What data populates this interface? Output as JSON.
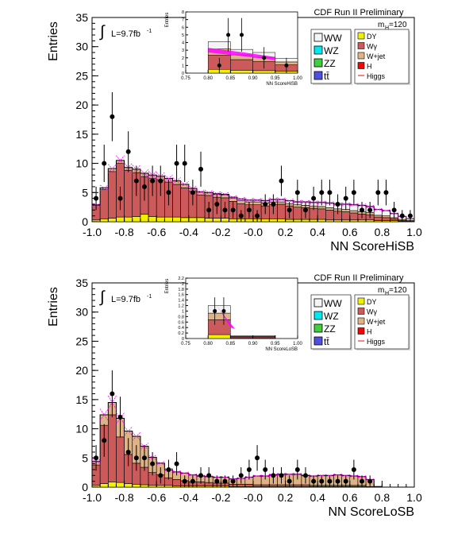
{
  "colors": {
    "WW": "#f4f4f4",
    "WZ": "#00e8f0",
    "ZZ": "#3fcf3f",
    "ttbar": "#5050e0",
    "DY": "#f0f000",
    "Wgamma": "#cd5a5a",
    "Wjet": "#deb487",
    "H": "#ff0000",
    "Higgs": "#ff00ff",
    "data": "#000000"
  },
  "panels": [
    {
      "id": "hisb",
      "header": "CDF Run II Preliminary",
      "mass_label": "m",
      "mass_sub": "H",
      "mass_value": "=120",
      "lumi_prefix": "L=9.7fb",
      "lumi_sup": "-1",
      "integral_symbol": "∫",
      "ylabel": "Entries",
      "xlabel": "NN ScoreHiSB",
      "legend_left": [
        "WW",
        "WZ",
        "ZZ",
        "tt̄"
      ],
      "legend_right": [
        "DY",
        "Wγ",
        "W+jet",
        "H",
        "Higgs"
      ],
      "inset": {
        "ylabel": "Entries",
        "xlabel": "NN ScoreHiSB",
        "xticks": [
          "0.75",
          "0.80",
          "0.85",
          "0.90",
          "0.95",
          "1.00"
        ],
        "yticks": [
          "0",
          "1",
          "2",
          "3",
          "4",
          "5",
          "6",
          "7",
          "8"
        ]
      },
      "xticks": [
        "-1.0",
        "-0.8",
        "-0.6",
        "-0.4",
        "-0.2",
        "-0.0",
        "0.2",
        "0.4",
        "0.6",
        "0.8",
        "1.0"
      ],
      "yticks": [
        "0",
        "5",
        "10",
        "15",
        "20",
        "25",
        "30",
        "35"
      ]
    },
    {
      "id": "losb",
      "header": "CDF Run II Preliminary",
      "mass_label": "m",
      "mass_sub": "H",
      "mass_value": "=120",
      "lumi_prefix": "L=9.7fb",
      "lumi_sup": "-1",
      "integral_symbol": "∫",
      "ylabel": "Entries",
      "xlabel": "NN ScoreLoSB",
      "legend_left": [
        "WW",
        "WZ",
        "ZZ",
        "tt̄"
      ],
      "legend_right": [
        "DY",
        "Wγ",
        "W+jet",
        "H",
        "Higgs"
      ],
      "inset": {
        "ylabel": "Entries",
        "xlabel": "NN ScoreLoSB",
        "xticks": [
          "0.75",
          "0.80",
          "0.85",
          "0.90",
          "0.95",
          "1.00"
        ],
        "yticks": [
          "0",
          "0.2",
          "0.4",
          "0.6",
          "0.8",
          "1",
          "1.2",
          "1.4",
          "1.6",
          "1.8",
          "2",
          "2.2"
        ]
      },
      "xticks": [
        "-1.0",
        "-0.8",
        "-0.6",
        "-0.4",
        "-0.2",
        "-0.0",
        "0.2",
        "0.4",
        "0.6",
        "0.8",
        "1.0"
      ],
      "yticks": [
        "0",
        "5",
        "10",
        "15",
        "20",
        "25",
        "30",
        "35"
      ]
    }
  ],
  "chart_data": [
    {
      "type": "bar",
      "title": "CDF Run II Preliminary",
      "xlabel": "NN ScoreHiSB",
      "ylabel": "Entries",
      "xlim": [
        -1.0,
        1.0
      ],
      "ylim": [
        0,
        35
      ],
      "bin_edges_start": -1.0,
      "bin_width": 0.05,
      "stack_order": [
        "DY",
        "Wgamma",
        "Wjet",
        "WW"
      ],
      "series": [
        {
          "name": "DY",
          "values": [
            0.3,
            0.5,
            0.6,
            0.8,
            0.8,
            0.9,
            1.3,
            0.9,
            0.8,
            0.8,
            0.8,
            0.7,
            0.7,
            0.7,
            0.6,
            0.6,
            0.6,
            0.5,
            0.5,
            0.5,
            0.5,
            0.5,
            0.5,
            0.5,
            0.4,
            0.4,
            0.4,
            0.4,
            0.4,
            0.3,
            0.3,
            0.3,
            0.3,
            0.3,
            0.3,
            0.2,
            0.2,
            0.2,
            0.1,
            0.1
          ]
        },
        {
          "name": "Wgamma",
          "values": [
            2.5,
            5.0,
            8.0,
            9.2,
            8.0,
            7.5,
            6.4,
            6.5,
            6.4,
            6.0,
            5.6,
            5.1,
            4.5,
            3.9,
            3.9,
            3.6,
            3.5,
            3.0,
            2.6,
            2.4,
            2.4,
            2.2,
            2.4,
            2.5,
            2.3,
            2.1,
            2.0,
            1.9,
            1.8,
            1.7,
            1.5,
            1.4,
            1.2,
            1.0,
            0.9,
            0.6,
            0.5,
            0.3,
            0.1,
            0.0
          ]
        },
        {
          "name": "Wjet",
          "values": [
            0.1,
            0.3,
            0.5,
            0.5,
            0.5,
            0.6,
            0.6,
            0.6,
            0.6,
            0.6,
            0.6,
            0.6,
            0.5,
            0.5,
            0.5,
            0.5,
            0.5,
            0.5,
            0.5,
            0.5,
            0.5,
            0.5,
            0.5,
            0.4,
            0.4,
            0.4,
            0.4,
            0.4,
            0.4,
            0.4,
            0.4,
            0.4,
            0.4,
            0.4,
            0.4,
            0.3,
            0.3,
            0.2,
            0.2,
            0.1
          ]
        },
        {
          "name": "WW",
          "values": [
            0.0,
            0.0,
            0.0,
            0.0,
            0.0,
            0.0,
            0.0,
            0.0,
            0.0,
            0.0,
            0.0,
            0.0,
            0.0,
            0.0,
            0.0,
            0.1,
            0.1,
            0.2,
            0.3,
            0.3,
            0.3,
            0.4,
            0.4,
            0.4,
            0.5,
            0.5,
            0.6,
            0.6,
            0.7,
            0.8,
            0.8,
            0.9,
            1.0,
            1.1,
            1.0,
            1.0,
            0.9,
            0.7,
            0.5,
            0.3
          ]
        }
      ],
      "data_points": [
        {
          "x": -0.975,
          "y": 4,
          "err": 2.0
        },
        {
          "x": -0.925,
          "y": 10,
          "err": 3.2
        },
        {
          "x": -0.875,
          "y": 18,
          "err": 4.2
        },
        {
          "x": -0.825,
          "y": 4,
          "err": 2.0
        },
        {
          "x": -0.775,
          "y": 12,
          "err": 3.5
        },
        {
          "x": -0.725,
          "y": 7,
          "err": 2.6
        },
        {
          "x": -0.675,
          "y": 6,
          "err": 2.4
        },
        {
          "x": -0.625,
          "y": 7,
          "err": 2.6
        },
        {
          "x": -0.575,
          "y": 7,
          "err": 2.6
        },
        {
          "x": -0.525,
          "y": 5,
          "err": 2.2
        },
        {
          "x": -0.475,
          "y": 10,
          "err": 3.2
        },
        {
          "x": -0.425,
          "y": 10,
          "err": 3.2
        },
        {
          "x": -0.375,
          "y": 5,
          "err": 2.2
        },
        {
          "x": -0.325,
          "y": 9,
          "err": 3.0
        },
        {
          "x": -0.275,
          "y": 2,
          "err": 1.4
        },
        {
          "x": -0.225,
          "y": 3,
          "err": 1.7
        },
        {
          "x": -0.175,
          "y": 2,
          "err": 1.4
        },
        {
          "x": -0.125,
          "y": 2,
          "err": 1.4
        },
        {
          "x": -0.075,
          "y": 1,
          "err": 1.0
        },
        {
          "x": -0.025,
          "y": 2,
          "err": 1.4
        },
        {
          "x": 0.025,
          "y": 1,
          "err": 1.0
        },
        {
          "x": 0.075,
          "y": 3,
          "err": 1.7
        },
        {
          "x": 0.125,
          "y": 3,
          "err": 1.7
        },
        {
          "x": 0.175,
          "y": 7,
          "err": 2.6
        },
        {
          "x": 0.225,
          "y": 2,
          "err": 1.4
        },
        {
          "x": 0.275,
          "y": 5,
          "err": 2.2
        },
        {
          "x": 0.325,
          "y": 2,
          "err": 1.4
        },
        {
          "x": 0.375,
          "y": 4,
          "err": 2.0
        },
        {
          "x": 0.425,
          "y": 5,
          "err": 2.2
        },
        {
          "x": 0.475,
          "y": 5,
          "err": 2.2
        },
        {
          "x": 0.525,
          "y": 3,
          "err": 1.7
        },
        {
          "x": 0.575,
          "y": 4,
          "err": 2.0
        },
        {
          "x": 0.625,
          "y": 5,
          "err": 2.2
        },
        {
          "x": 0.675,
          "y": 2,
          "err": 1.4
        },
        {
          "x": 0.725,
          "y": 2,
          "err": 1.4
        },
        {
          "x": 0.775,
          "y": 5,
          "err": 2.2
        },
        {
          "x": 0.825,
          "y": 5,
          "err": 2.2
        },
        {
          "x": 0.875,
          "y": 2,
          "err": 1.4
        },
        {
          "x": 0.925,
          "y": 1,
          "err": 1.0
        },
        {
          "x": 0.975,
          "y": 1,
          "err": 1.0
        }
      ],
      "inset": {
        "xlim": [
          0.75,
          1.0
        ],
        "ylim": [
          0,
          8
        ],
        "bins": [
          0.75,
          0.8,
          0.85,
          0.9,
          0.95,
          1.0
        ],
        "stack_total": [
          0,
          4.1,
          3.1,
          2.7,
          1.9
        ],
        "data_points": [
          {
            "x": 0.825,
            "y": 1,
            "err": 1.0
          },
          {
            "x": 0.845,
            "y": 5,
            "err": 2.2
          },
          {
            "x": 0.875,
            "y": 5,
            "err": 2.2
          },
          {
            "x": 0.925,
            "y": 2,
            "err": 1.4
          },
          {
            "x": 0.975,
            "y": 1,
            "err": 1.0
          }
        ]
      }
    },
    {
      "type": "bar",
      "title": "CDF Run II Preliminary",
      "xlabel": "NN ScoreLoSB",
      "ylabel": "Entries",
      "xlim": [
        -1.0,
        1.0
      ],
      "ylim": [
        0,
        35
      ],
      "bin_edges_start": -1.0,
      "bin_width": 0.05,
      "stack_order": [
        "DY",
        "Wgamma",
        "Wjet",
        "WW"
      ],
      "series": [
        {
          "name": "DY",
          "values": [
            0.3,
            0.6,
            0.9,
            0.8,
            0.6,
            0.5,
            0.4,
            0.3,
            0.3,
            0.3,
            0.2,
            0.2,
            0.2,
            0.2,
            0.2,
            0.2,
            0.2,
            0.1,
            0.1,
            0.1,
            0.1,
            0.1,
            0.1,
            0.1,
            0.1,
            0.1,
            0.1,
            0.1,
            0.1,
            0.1,
            0.1,
            0.1,
            0.1,
            0.1,
            0.0,
            0.0,
            0.0,
            0.0,
            0.0,
            0.0
          ]
        },
        {
          "name": "Wgamma",
          "values": [
            3.5,
            10.0,
            11.5,
            7.8,
            5.0,
            3.6,
            3.0,
            2.2,
            1.8,
            1.3,
            1.1,
            0.9,
            0.7,
            0.7,
            0.6,
            0.5,
            0.5,
            0.4,
            0.4,
            0.4,
            0.3,
            0.3,
            0.3,
            0.3,
            0.3,
            0.3,
            0.3,
            0.2,
            0.2,
            0.2,
            0.2,
            0.2,
            0.2,
            0.2,
            0.1,
            0.1,
            0.0,
            0.0,
            0.0,
            0.0
          ]
        },
        {
          "name": "Wjet",
          "values": [
            0.6,
            1.8,
            2.1,
            3.2,
            4.0,
            4.6,
            3.6,
            2.6,
            2.0,
            1.4,
            1.3,
            1.3,
            1.2,
            1.0,
            1.0,
            1.0,
            1.0,
            0.9,
            1.0,
            1.2,
            1.5,
            1.5,
            1.7,
            1.8,
            1.8,
            1.8,
            1.6,
            1.6,
            1.7,
            1.7,
            1.8,
            1.7,
            1.6,
            1.5,
            1.2,
            0.0,
            0.0,
            0.0,
            0.0,
            0.0
          ]
        },
        {
          "name": "WW",
          "values": [
            0.0,
            0.0,
            0.0,
            0.0,
            0.0,
            0.0,
            0.0,
            0.0,
            0.0,
            0.0,
            0.0,
            0.0,
            0.0,
            0.0,
            0.0,
            0.0,
            0.0,
            0.0,
            0.0,
            0.0,
            0.0,
            0.0,
            0.0,
            0.0,
            0.0,
            0.0,
            0.0,
            0.0,
            0.0,
            0.0,
            0.0,
            0.0,
            0.0,
            0.0,
            0.0,
            0.0,
            0.0,
            0.0,
            0.0,
            0.0
          ]
        }
      ],
      "data_points": [
        {
          "x": -0.975,
          "y": 5,
          "err": 2.2
        },
        {
          "x": -0.925,
          "y": 8,
          "err": 2.8
        },
        {
          "x": -0.875,
          "y": 16,
          "err": 4.0
        },
        {
          "x": -0.825,
          "y": 12,
          "err": 3.5
        },
        {
          "x": -0.775,
          "y": 6,
          "err": 2.4
        },
        {
          "x": -0.725,
          "y": 5,
          "err": 2.2
        },
        {
          "x": -0.675,
          "y": 5,
          "err": 2.2
        },
        {
          "x": -0.625,
          "y": 4,
          "err": 2.0
        },
        {
          "x": -0.575,
          "y": 2,
          "err": 1.4
        },
        {
          "x": -0.525,
          "y": 3,
          "err": 1.7
        },
        {
          "x": -0.475,
          "y": 4,
          "err": 2.0
        },
        {
          "x": -0.425,
          "y": 1,
          "err": 1.0
        },
        {
          "x": -0.375,
          "y": 1,
          "err": 1.0
        },
        {
          "x": -0.325,
          "y": 2,
          "err": 1.4
        },
        {
          "x": -0.275,
          "y": 2,
          "err": 1.4
        },
        {
          "x": -0.225,
          "y": 1,
          "err": 1.0
        },
        {
          "x": -0.175,
          "y": 1,
          "err": 1.0
        },
        {
          "x": -0.125,
          "y": 1,
          "err": 1.0
        },
        {
          "x": -0.075,
          "y": 2,
          "err": 1.4
        },
        {
          "x": -0.025,
          "y": 3,
          "err": 1.7
        },
        {
          "x": 0.025,
          "y": 5,
          "err": 2.2
        },
        {
          "x": 0.075,
          "y": 3,
          "err": 1.7
        },
        {
          "x": 0.125,
          "y": 2,
          "err": 1.4
        },
        {
          "x": 0.175,
          "y": 2,
          "err": 1.4
        },
        {
          "x": 0.225,
          "y": 1,
          "err": 1.0
        },
        {
          "x": 0.275,
          "y": 3,
          "err": 1.7
        },
        {
          "x": 0.325,
          "y": 2,
          "err": 1.4
        },
        {
          "x": 0.375,
          "y": 1,
          "err": 1.0
        },
        {
          "x": 0.425,
          "y": 1,
          "err": 1.0
        },
        {
          "x": 0.475,
          "y": 1,
          "err": 1.0
        },
        {
          "x": 0.525,
          "y": 1,
          "err": 1.0
        },
        {
          "x": 0.575,
          "y": 1,
          "err": 1.0
        },
        {
          "x": 0.625,
          "y": 3,
          "err": 1.7
        },
        {
          "x": 0.675,
          "y": 1,
          "err": 1.0
        },
        {
          "x": 0.725,
          "y": 1,
          "err": 1.0
        }
      ],
      "inset": {
        "xlim": [
          0.75,
          1.0
        ],
        "ylim": [
          0,
          2.2
        ],
        "bins": [
          0.75,
          0.8,
          0.85,
          0.9,
          0.95,
          1.0
        ],
        "stack_total": [
          0,
          1.2,
          0.1,
          0.1,
          0.0
        ],
        "data_points": [
          {
            "x": 0.815,
            "y": 1.0,
            "err": 0.5
          },
          {
            "x": 0.835,
            "y": 1.0,
            "err": 0.5
          }
        ]
      }
    }
  ]
}
